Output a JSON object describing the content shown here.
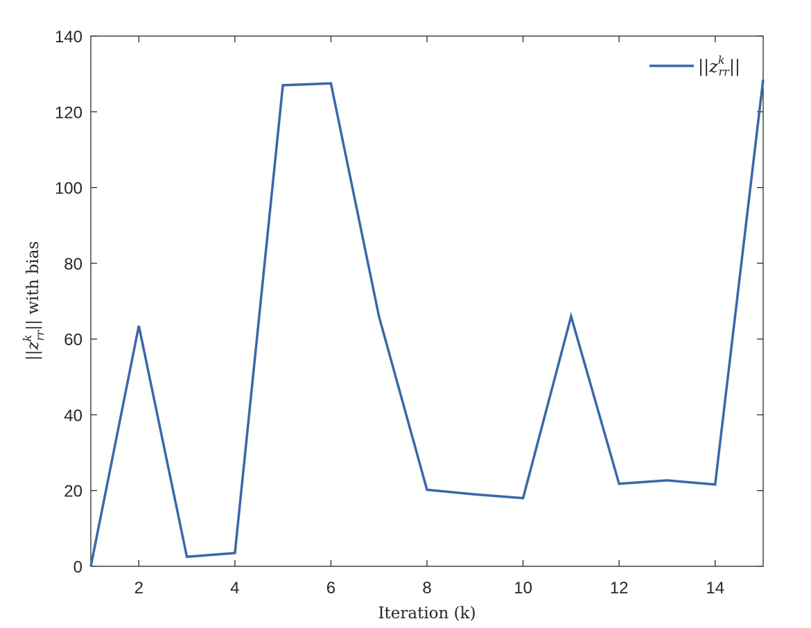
{
  "chart_data": {
    "type": "line",
    "xlabel": "Iteration (k)",
    "ylabel_prefix": "||z",
    "ylabel_sup": "k",
    "ylabel_sub": "rr",
    "ylabel_suffix": "|| with bias",
    "xlim": [
      1,
      15
    ],
    "ylim": [
      0,
      140
    ],
    "xticks": [
      2,
      4,
      6,
      8,
      10,
      12,
      14
    ],
    "yticks": [
      0,
      20,
      40,
      60,
      80,
      100,
      120,
      140
    ],
    "grid": false,
    "legend_position": "top-right",
    "series": [
      {
        "name": "||z_rr^k||",
        "color": "#3a67a8",
        "x": [
          1,
          2,
          3,
          4,
          5,
          6,
          7,
          8,
          9,
          10,
          11,
          12,
          13,
          14,
          15
        ],
        "y": [
          0,
          63.5,
          2.5,
          3.5,
          127,
          127.5,
          66,
          20.2,
          19,
          18,
          66,
          21.8,
          22.7,
          21.6,
          128.5
        ]
      }
    ],
    "legend": {
      "prefix": "||z",
      "sup": "k",
      "sub": "rr",
      "suffix": "||"
    }
  }
}
